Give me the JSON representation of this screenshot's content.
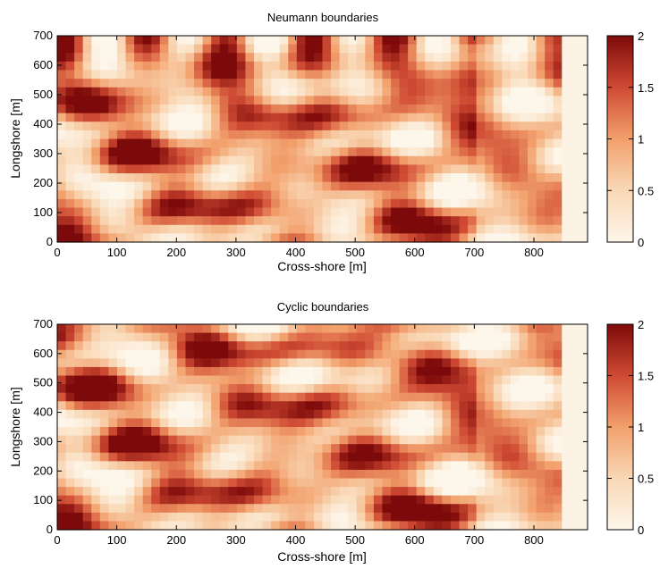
{
  "chart_data": [
    {
      "type": "heatmap",
      "title": "Neumann  boundaries",
      "xlabel": "Cross-shore [m]",
      "ylabel": "Longshore [m]",
      "xlim": [
        0,
        890
      ],
      "ylim": [
        0,
        700
      ],
      "xticks": [
        "0",
        "100",
        "200",
        "300",
        "400",
        "500",
        "600",
        "700",
        "800"
      ],
      "yticks": [
        "0",
        "100",
        "200",
        "300",
        "400",
        "500",
        "600",
        "700"
      ],
      "colorbar": {
        "min": 0,
        "max": 2,
        "ticks": [
          "0",
          "0.5",
          "1",
          "1.5",
          "2"
        ]
      },
      "grid": false,
      "boundary": "neumann"
    },
    {
      "type": "heatmap",
      "title": "Cyclic boundaries",
      "xlabel": "Cross-shore [m]",
      "ylabel": "Longshore [m]",
      "xlim": [
        0,
        890
      ],
      "ylim": [
        0,
        700
      ],
      "xticks": [
        "0",
        "100",
        "200",
        "300",
        "400",
        "500",
        "600",
        "700",
        "800"
      ],
      "yticks": [
        "0",
        "100",
        "200",
        "300",
        "400",
        "500",
        "600",
        "700"
      ],
      "colorbar": {
        "min": 0,
        "max": 2,
        "ticks": [
          "0",
          "0.5",
          "1",
          "1.5",
          "2"
        ]
      },
      "grid": false,
      "boundary": "cyclic"
    }
  ],
  "colors": {
    "low": "#fdf6ea",
    "mid": "#f2a06c",
    "high": "#7d0a0a"
  }
}
